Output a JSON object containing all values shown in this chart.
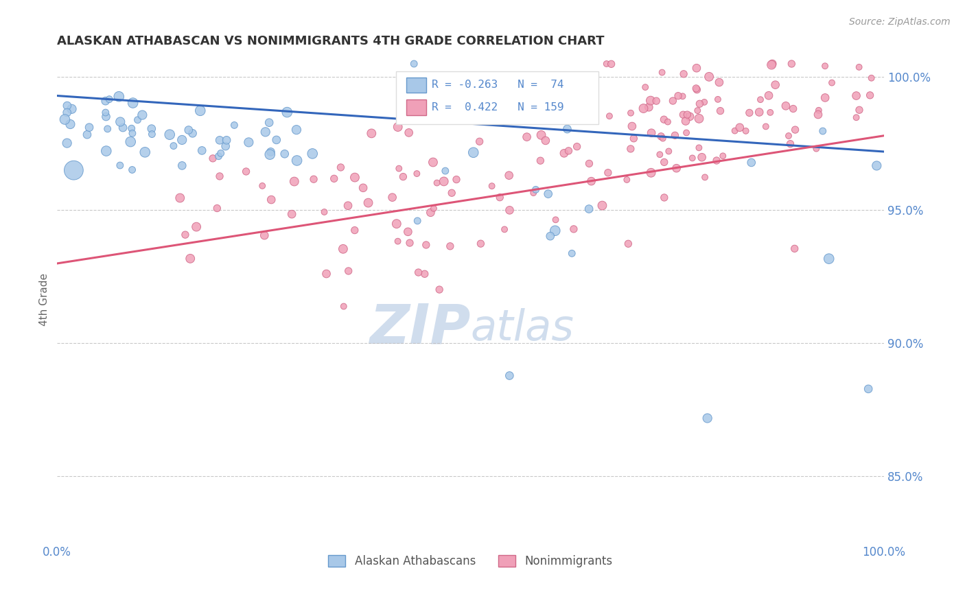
{
  "title": "ALASKAN ATHABASCAN VS NONIMMIGRANTS 4TH GRADE CORRELATION CHART",
  "source_text": "Source: ZipAtlas.com",
  "ylabel": "4th Grade",
  "xlim": [
    0.0,
    1.0
  ],
  "ylim": [
    0.825,
    1.008
  ],
  "yticks": [
    0.85,
    0.9,
    0.95,
    1.0
  ],
  "ytick_labels": [
    "85.0%",
    "90.0%",
    "95.0%",
    "100.0%"
  ],
  "blue_R": -0.263,
  "blue_N": 74,
  "pink_R": 0.422,
  "pink_N": 159,
  "blue_color": "#A8C8E8",
  "pink_color": "#F0A0B8",
  "blue_edge_color": "#6699CC",
  "pink_edge_color": "#D06888",
  "blue_line_color": "#3366BB",
  "pink_line_color": "#DD5577",
  "legend_blue_label": "Alaskan Athabascans",
  "legend_pink_label": "Nonimmigrants",
  "title_color": "#333333",
  "axis_label_color": "#5588CC",
  "grid_color": "#BBBBBB",
  "watermark_color": "#D0DDED"
}
